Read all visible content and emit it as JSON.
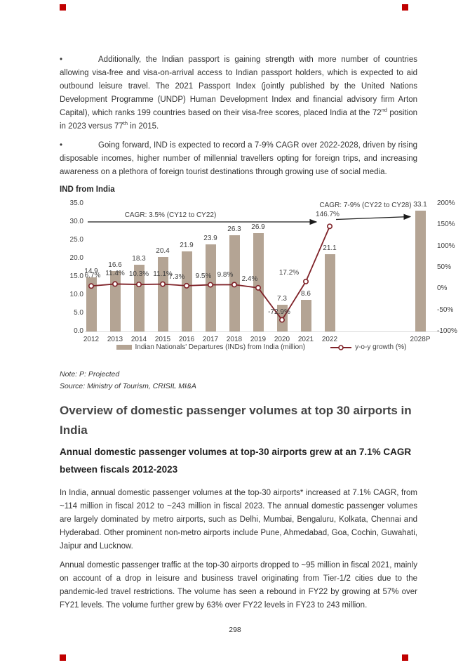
{
  "page": {
    "number": "298"
  },
  "bullets": {
    "glyph": "•"
  },
  "paragraphs": {
    "p1": {
      "pre": "Additionally, the Indian passport is gaining strength with more number of countries allowing visa-free and visa-on-arrival access to Indian passport holders, which is expected to aid outbound leisure travel. The 2021 Passport Index (jointly published by the United Nations Development Programme (UNDP) Human Development Index and financial advisory firm Arton Capital), which ranks 199 countries based on their visa-free scores, placed India at the 72",
      "sup1": "nd",
      "mid": " position in 2023 versus 77",
      "sup2": "th",
      "post": " in 2015."
    },
    "p2": "Going forward, IND is expected to record a 7-9% CAGR over 2022-2028, driven by rising disposable incomes, higher number of millennial travellers opting for foreign trips, and increasing awareness on a plethora of foreign tourist destinations through growing use of social media.",
    "p3": "In India, annual domestic passenger volumes at the top-30 airports* increased at 7.1% CAGR, from ~114 million in fiscal 2012 to ~243 million in fiscal 2023. The annual domestic passenger volumes are largely dominated by metro airports, such as Delhi, Mumbai, Bengaluru, Kolkata, Chennai and Hyderabad. Other prominent non-metro airports include Pune, Ahmedabad, Goa, Cochin, Guwahati, Jaipur and Lucknow.",
    "p4": "Annual domestic passenger traffic at the top-30 airports dropped to ~95 million in fiscal 2021, mainly on account of a drop in leisure and business travel originating from Tier-1/2 cities due to the pandemic-led travel restrictions. The volume has seen a rebound in FY22 by growing at 57% over FY21 levels. The volume further grew by 63% over FY22 levels in FY23 to 243 million."
  },
  "notes": {
    "note": "Note: P: Projected",
    "source": "Source: Ministry of Tourism, CRISIL MI&A"
  },
  "headings": {
    "h1": "Overview of domestic passenger volumes at top 30 airports in India",
    "h2": "Annual domestic passenger volumes at top-30 airports grew at an 7.1% CAGR between fiscals 2012-2023"
  },
  "chart_data": {
    "type": "bar",
    "title": "IND from India",
    "categories": [
      "2012",
      "2013",
      "2014",
      "2015",
      "2016",
      "2017",
      "2018",
      "2019",
      "2020",
      "2021",
      "2022",
      "2028P"
    ],
    "series": [
      {
        "name": "Indian Nationals' Departures (INDs) from India (million)",
        "type": "bar",
        "axis": "left",
        "color": "#b4a494",
        "values": [
          14.9,
          16.6,
          18.3,
          20.4,
          21.9,
          23.9,
          26.3,
          26.9,
          7.3,
          8.6,
          21.1,
          33.1
        ]
      },
      {
        "name": "y-o-y growth (%)",
        "type": "line",
        "axis": "right",
        "color": "#7f2228",
        "values": [
          6.7,
          11.4,
          10.3,
          11.1,
          7.3,
          9.5,
          9.8,
          2.4,
          -72.9,
          17.2,
          146.7,
          null
        ],
        "point_labels": [
          "6.7%",
          "11.4%",
          "10.3%",
          "11.1%",
          "7.3%",
          "9.5%",
          "9.8%",
          "2.4%",
          "-72.9%",
          "17.2%",
          "146.7%",
          ""
        ]
      }
    ],
    "left_axis": {
      "min": 0,
      "max": 35,
      "step": 5,
      "ticks": [
        "35.0",
        "30.0",
        "25.0",
        "20.0",
        "15.0",
        "10.0",
        "5.0",
        "0.0"
      ]
    },
    "right_axis": {
      "min": -100,
      "max": 200,
      "step": 50,
      "ticks": [
        "200%",
        "150%",
        "100%",
        "50%",
        "0%",
        "-50%",
        "-100%"
      ]
    },
    "annotations": [
      "CAGR: 3.5% (CY12 to CY22)",
      "CAGR: 7-9% (CY22 to CY28)"
    ],
    "legend": [
      "Indian Nationals' Departures (INDs) from India (million)",
      "y-o-y growth (%)"
    ],
    "legend_position": "bottom",
    "grid": false
  }
}
